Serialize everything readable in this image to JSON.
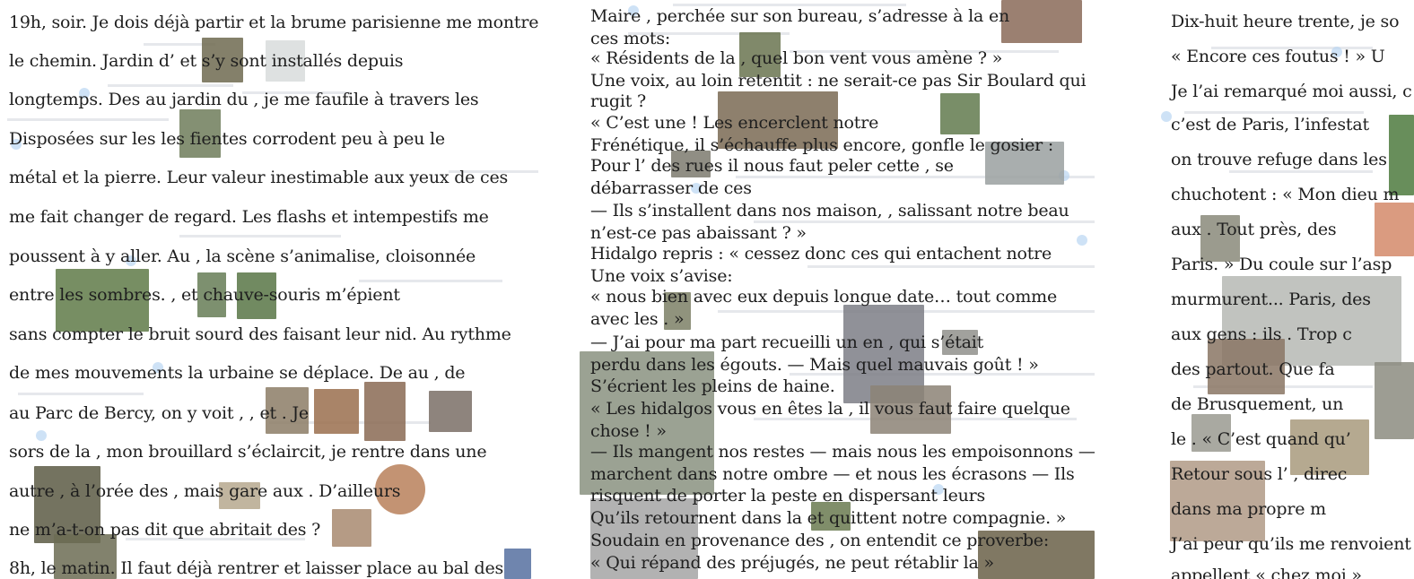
{
  "column1": {
    "lines": [
      "19h, soir. Je dois déjà partir et la brume parisienne me montre",
      "le chemin. Jardin d’         et          s’y sont installés depuis",
      "longtemps. Des     au jardin du    , je me faufile à travers les",
      "   Disposées sur les      les fientes corrodent peu à peu le",
      "métal et la pierre. Leur valeur inestimable aux yeux de ces",
      "me fait changer de regard. Les flashs et   intempestifs me",
      "poussent à y aller. Au     , la scène   s’animalise, cloisonnée",
      "entre les       sombres.      ,      et chauve-souris m’épient",
      "sans compter le bruit sourd des    faisant leur nid. Au rythme",
      "de mes mouvements la   urbaine se déplace. De   au    , de",
      "  au Parc de Bercy, on y voit       ,      ,       et       . Je",
      "sors de la   , mon brouillard s’éclaircit, je rentre dans une",
      "autre       , à l’orée des      , mais gare aux        . D’ailleurs",
      "ne m’a-t-on pas dit que   abritait des      ?",
      "8h, le matin. Il faut déjà rentrer et laisser place au bal des"
    ]
  },
  "column2": {
    "lines": [
      "Maire   , perchée sur son bureau, s’adresse à la            en",
      "ces mots:",
      "« Résidents de la        , quel bon vent vous amène ? »",
      "Une voix, au loin retentit : ne serait-ce pas Sir Boulard qui",
      "rugit ?",
      "« C’est une   ! Les         encerclent notre",
      "Frénétique, il s’échauffe plus encore, gonfle le gosier :",
      "Pour     l’        des rues il nous faut peler cette           , se",
      "débarrasser de ces",
      "— Ils s’installent dans nos maison,    , salissant notre beau",
      "n’est-ce pas abaissant ? »",
      "Hidalgo repris : « cessez donc ces    qui entachent notre",
      "Une voix s’avise:",
      "« nous    bien avec eux depuis longue date… tout comme",
      "avec les      . »",
      "— J’ai pour ma part recueilli un         en       , qui s’était",
      "perdu dans les égouts. — Mais quel mauvais goût ! »",
      "S’écrient les          pleins de haine.",
      "« Les hidalgos vous en êtes la   , il vous faut faire quelque",
      "chose ! »",
      "— Ils mangent nos restes — mais nous les empoisonnons —",
      "marchent dans notre ombre — et nous les écrasons — Ils",
      "risquent de porter la peste en dispersant leurs",
      "Qu’ils retournent dans la       et quittent notre compagnie. »",
      "Soudain en provenance des        , on entendit ce proverbe:",
      "« Qui répand des préjugés, ne peut rétablir la                    »"
    ]
  },
  "column3": {
    "lines": [
      "Dix-huit heure trente, je so",
      "« Encore ces foutus      ! » U",
      "Je l’ai remarqué moi aussi, c",
      "c’est      de Paris, l’infestat",
      "on trouve refuge dans les",
      "chuchotent : « Mon dieu m",
      "aux       . Tout près, des",
      "Paris. » Du   coule sur l’asp",
      "murmurent... Paris,    des",
      "aux gens : ils           . Trop c",
      "des              partout. Que fa",
      "de     Brusquement, un",
      "le       . « C’est quand qu’",
      "Retour sous l’          , direc",
      "                 dans ma propre m",
      "J’ai peur qu’ils me renvoient",
      "appellent « chez moi »"
    ]
  },
  "colors": {
    "text": "#1e1e1e",
    "background": "#ffffff",
    "tweet_dot": "#b9d6f2"
  }
}
